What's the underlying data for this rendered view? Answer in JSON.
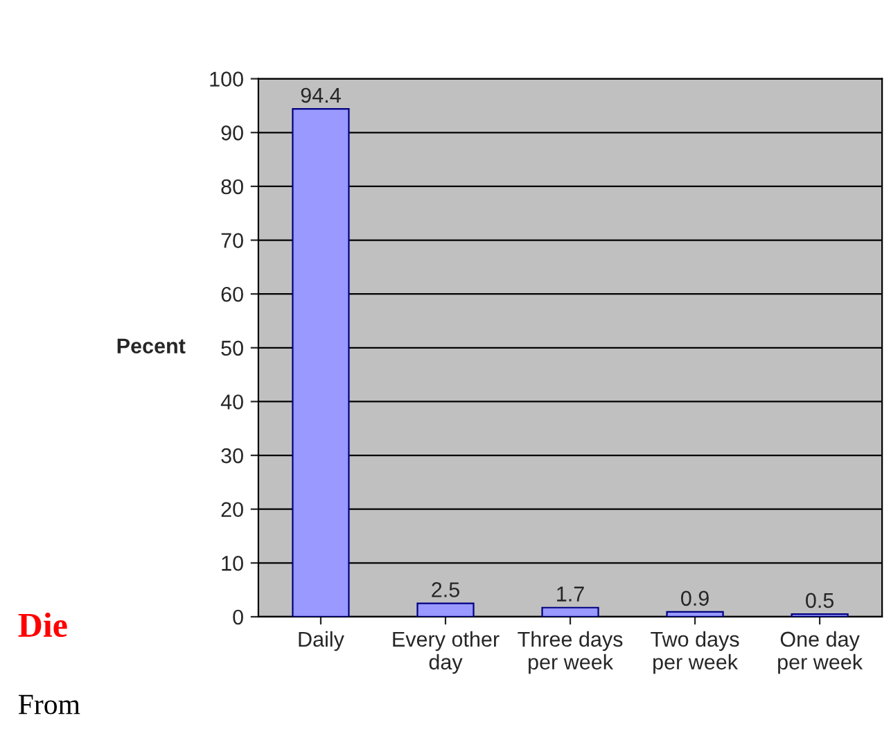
{
  "chart_data": {
    "type": "bar",
    "ylabel": "Pecent",
    "categories": [
      "Daily",
      "Every other\nday",
      "Three days\nper week",
      "Two days\nper week",
      "One day\nper week"
    ],
    "values": [
      94.4,
      2.5,
      1.7,
      0.9,
      0.5
    ],
    "color": "#9999ff",
    "ylim": [
      0,
      100
    ],
    "yticks": [
      0,
      10,
      20,
      30,
      40,
      50,
      60,
      70,
      80,
      90,
      100
    ],
    "grid": "y",
    "data_labels": true,
    "legend": false,
    "annotations": [
      "Die",
      "From"
    ]
  }
}
